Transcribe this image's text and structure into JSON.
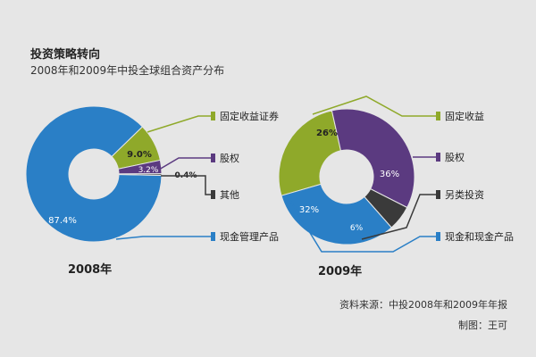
{
  "title": "投资策略转向",
  "subtitle": "2008年和2009年中投全球组合资产分布",
  "source": "资料来源：中投2008年和2009年年报",
  "credit": "制图：王可",
  "chart_data": [
    {
      "type": "pie",
      "title": "2008年",
      "categories": [
        "现金管理产品",
        "固定收益证券",
        "股权",
        "其他"
      ],
      "values": [
        87.4,
        9.0,
        3.2,
        0.4
      ],
      "value_labels": [
        "87.4%",
        "9.0%",
        "3.2%",
        "0.4%"
      ],
      "colors": [
        "#2a7fc6",
        "#8fa92a",
        "#5b3a80",
        "#3a3a3a"
      ]
    },
    {
      "type": "pie",
      "title": "2009年",
      "categories": [
        "固定收益",
        "股权",
        "另类投资",
        "现金和现金产品"
      ],
      "values": [
        26,
        36,
        6,
        32
      ],
      "value_labels": [
        "26%",
        "36%",
        "6%",
        "32%"
      ],
      "colors": [
        "#8fa92a",
        "#5b3a80",
        "#3a3a3a",
        "#2a7fc6"
      ]
    }
  ]
}
